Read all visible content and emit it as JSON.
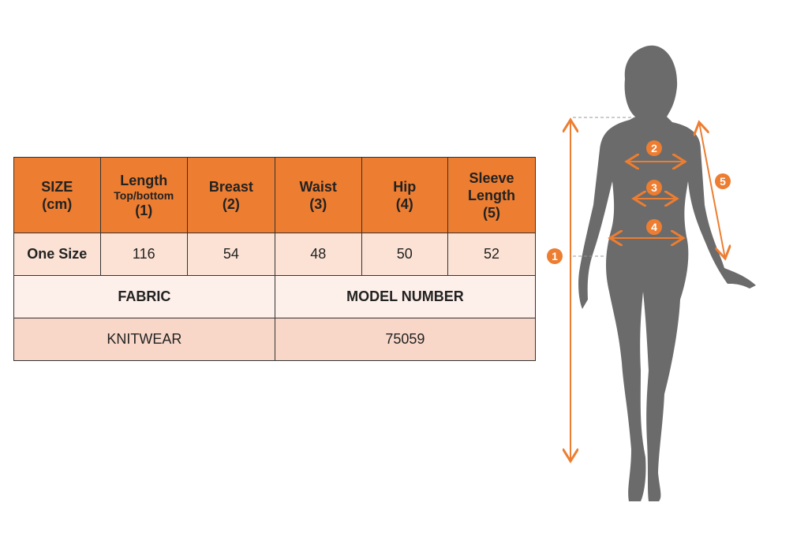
{
  "accent_color": "#ED7D31",
  "table": {
    "headers": [
      {
        "line1": "SIZE",
        "line2": "(cm)"
      },
      {
        "line1": "Length",
        "sub": "Top/bottom",
        "line2": "(1)"
      },
      {
        "line1": "Breast",
        "line2": "(2)"
      },
      {
        "line1": "Waist",
        "line2": "(3)"
      },
      {
        "line1": "Hip",
        "line2": "(4)"
      },
      {
        "line1": "Sleeve",
        "sub": "Length",
        "line2": "(5)"
      }
    ],
    "row": [
      "One Size",
      "116",
      "54",
      "48",
      "50",
      "52"
    ],
    "fabric_label": "FABRIC",
    "model_label": "MODEL NUMBER",
    "fabric_value": "KNITWEAR",
    "model_value": "75059"
  },
  "figure": {
    "markers": [
      "1",
      "2",
      "3",
      "4",
      "5"
    ]
  }
}
